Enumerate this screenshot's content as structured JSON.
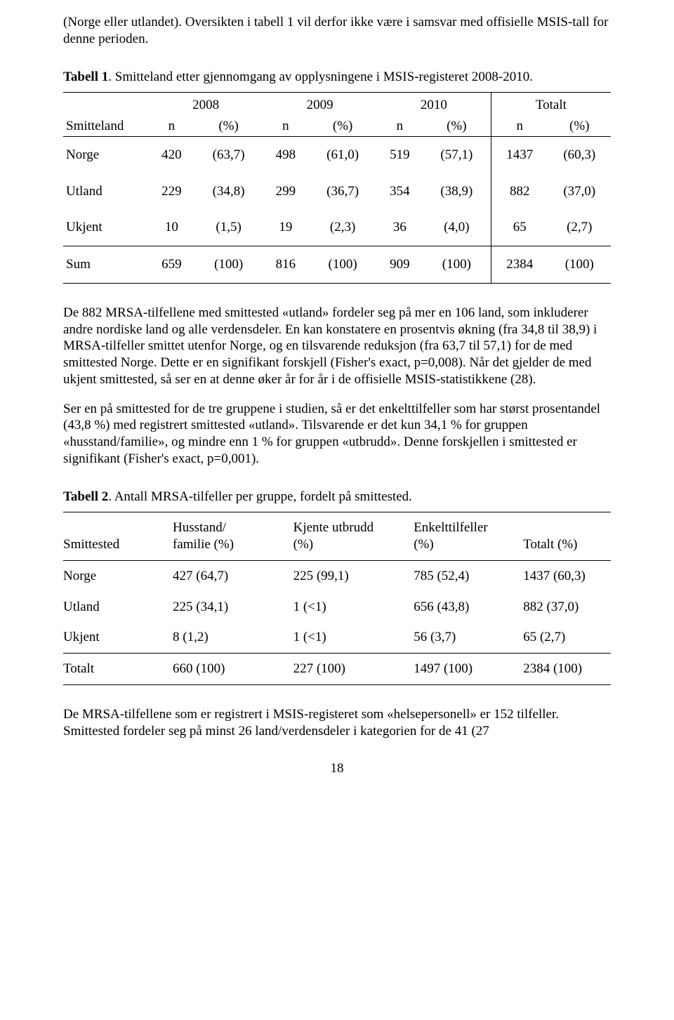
{
  "intro": "(Norge eller utlandet). Oversikten i tabell 1 vil derfor ikke være i samsvar med offisielle MSIS-tall for denne perioden.",
  "table1": {
    "caption_bold": "Tabell 1",
    "caption_rest": ". Smitteland etter gjennomgang av opplysningene i MSIS-registeret 2008-2010.",
    "rowlabel": "Smitteland",
    "years": [
      "2008",
      "2009",
      "2010"
    ],
    "total_label": "Totalt",
    "sub_n": "n",
    "sub_pct": "(%)",
    "rows": [
      {
        "label": "Norge",
        "v": [
          "420",
          "(63,7)",
          "498",
          "(61,0)",
          "519",
          "(57,1)",
          "1437",
          "(60,3)"
        ]
      },
      {
        "label": "Utland",
        "v": [
          "229",
          "(34,8)",
          "299",
          "(36,7)",
          "354",
          "(38,9)",
          "882",
          "(37,0)"
        ]
      },
      {
        "label": "Ukjent",
        "v": [
          "10",
          "(1,5)",
          "19",
          "(2,3)",
          "36",
          "(4,0)",
          "65",
          "(2,7)"
        ]
      }
    ],
    "sum": {
      "label": "Sum",
      "v": [
        "659",
        "(100)",
        "816",
        "(100)",
        "909",
        "(100)",
        "2384",
        "(100)"
      ]
    }
  },
  "para1": "De 882 MRSA-tilfellene med smittested «utland» fordeler seg på mer en 106 land, som inkluderer andre nordiske land og alle verdensdeler. En kan konstatere en prosentvis økning (fra 34,8 til 38,9) i MRSA-tilfeller smittet utenfor Norge, og en tilsvarende reduksjon (fra 63,7 til 57,1) for de med smittested Norge. Dette er en signifikant forskjell (Fisher's exact, p=0,008). Når det gjelder de med ukjent smittested, så ser en at denne øker år for år i de offisielle MSIS-statistikkene (28).",
  "para2": "Ser en på smittested for de tre gruppene i studien, så er det enkelttilfeller som har størst prosentandel (43,8 %) med registrert smittested «utland». Tilsvarende er det kun 34,1 % for gruppen «husstand/familie», og mindre enn 1 % for gruppen «utbrudd». Denne forskjellen i smittested er signifikant (Fisher's exact, p=0,001).",
  "table2": {
    "caption_bold": "Tabell 2",
    "caption_rest": ". Antall MRSA-tilfeller per gruppe, fordelt på smittested.",
    "headers": [
      "Smittested",
      "Husstand/\nfamilie (%)",
      "Kjente utbrudd\n(%)",
      "Enkelttilfeller\n(%)",
      "Totalt (%)"
    ],
    "rows": [
      {
        "c": [
          "Norge",
          "427 (64,7)",
          "225 (99,1)",
          "785 (52,4)",
          "1437 (60,3)"
        ]
      },
      {
        "c": [
          "Utland",
          "225 (34,1)",
          "1 (<1)",
          "656 (43,8)",
          "882 (37,0)"
        ]
      },
      {
        "c": [
          "Ukjent",
          "8 (1,2)",
          "1 (<1)",
          "56 (3,7)",
          "65 (2,7)"
        ]
      }
    ],
    "totals": [
      "Totalt",
      "660 (100)",
      "227 (100)",
      "1497 (100)",
      "2384 (100)"
    ]
  },
  "para3": "De MRSA-tilfellene som er registrert i MSIS-registeret som «helsepersonell» er 152 tilfeller. Smittested fordeler seg på minst 26 land/verdensdeler i kategorien for de 41 (27",
  "page_number": "18"
}
